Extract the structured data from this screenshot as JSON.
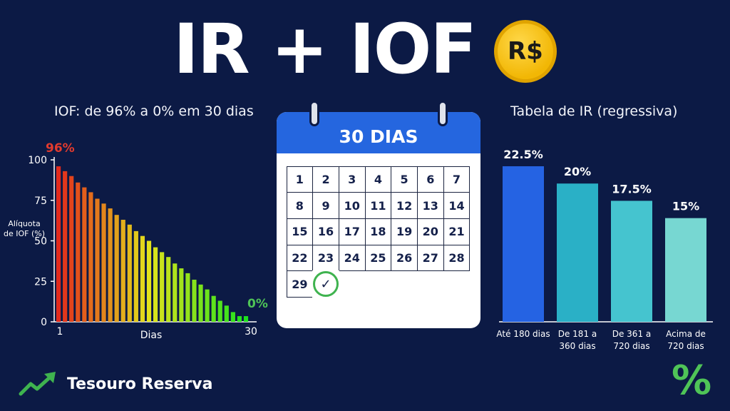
{
  "header": {
    "title": "IR + IOF",
    "coin_label": "R$"
  },
  "chart_data": [
    {
      "type": "bar",
      "title": "IOF: de 96% a 0% em 30 dias",
      "xlabel": "Dias",
      "ylabel": "Alíquota de IOF (%)",
      "ylim": [
        0,
        100
      ],
      "yticks": [
        "0",
        "25",
        "50",
        "75",
        "100"
      ],
      "xticks": [
        "1",
        "30"
      ],
      "annotations": {
        "start": "96%",
        "end": "0%"
      },
      "x": [
        1,
        2,
        3,
        4,
        5,
        6,
        7,
        8,
        9,
        10,
        11,
        12,
        13,
        14,
        15,
        16,
        17,
        18,
        19,
        20,
        21,
        22,
        23,
        24,
        25,
        26,
        27,
        28,
        29,
        30
      ],
      "values": [
        96,
        93,
        90,
        86,
        83,
        80,
        76,
        73,
        70,
        66,
        63,
        60,
        56,
        53,
        50,
        46,
        43,
        40,
        36,
        33,
        30,
        26,
        23,
        20,
        16,
        13,
        10,
        6,
        3,
        0
      ],
      "grid": false
    },
    {
      "type": "bar",
      "title": "Tabela de IR (regressiva)",
      "categories": [
        "Até 180 dias",
        "De 181 a 360 dias",
        "De 361 a 720 dias",
        "Acima de 720 dias"
      ],
      "category_lines": [
        [
          "Até 180 dias"
        ],
        [
          "De 181 a",
          "360 dias"
        ],
        [
          "De 361 a",
          "720 dias"
        ],
        [
          "Acima de",
          "720 dias"
        ]
      ],
      "values": [
        22.5,
        20,
        17.5,
        15
      ],
      "data_labels": [
        "22.5%",
        "20%",
        "17.5%",
        "15%"
      ],
      "colors": [
        "#2563e3",
        "#2ab0c6",
        "#45c4cf",
        "#77d7d2"
      ],
      "grid": false
    }
  ],
  "calendar": {
    "title": "30 DIAS",
    "days": [
      "1",
      "2",
      "3",
      "4",
      "5",
      "6",
      "7",
      "8",
      "9",
      "10",
      "11",
      "12",
      "13",
      "14",
      "15",
      "16",
      "17",
      "18",
      "19",
      "20",
      "21",
      "22",
      "23",
      "24",
      "25",
      "26",
      "27",
      "28",
      "29"
    ],
    "checked_mark": "✓"
  },
  "footer": {
    "brand": "Tesouro Reserva",
    "percent_icon": "%"
  },
  "colors": {
    "background": "#0c1a45",
    "accent_blue": "#2566df",
    "accent_green": "#4fc457",
    "coin": "#f2b705"
  }
}
